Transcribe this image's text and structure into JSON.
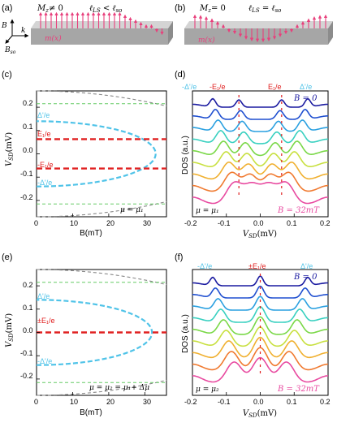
{
  "colors": {
    "pink": "#e8407c",
    "cyan": "#4fc3e8",
    "red": "#e02020",
    "green": "#66cc66",
    "gray": "#888888",
    "dos": [
      "#1a1aa0",
      "#1f4fd0",
      "#2aa0e0",
      "#38d0c0",
      "#7ad848",
      "#c8e040",
      "#f0b030",
      "#f07a30",
      "#e84aa0"
    ]
  },
  "panel_a": {
    "label": "(a)",
    "mz": "M",
    "mz_sub": "z",
    "mz_rel": "≠ 0",
    "l1": "ℓ",
    "l1_sub": "LS",
    "rel": "<",
    "l2": "ℓ",
    "l2_sub": "so",
    "b": "B",
    "k": "k",
    "bso": "B",
    "bso_sub": "so",
    "mx": "m(x)"
  },
  "panel_b": {
    "label": "(b)",
    "mz": "M",
    "mz_sub": "z",
    "mz_rel": "= 0",
    "l1": "ℓ",
    "l1_sub": "LS",
    "rel": "=",
    "l2": "ℓ",
    "l2_sub": "so",
    "mx": "m(x)"
  },
  "panel_c": {
    "label": "(c)",
    "ylabel": "V",
    "ylabel_sub": "SD",
    "ylabel_unit": "(mV)",
    "xlabel": "B(mT)",
    "yticks": [
      "0.2",
      "0.1",
      "0.0",
      "-0.1",
      "-0.2"
    ],
    "xticks": [
      "0",
      "10",
      "20",
      "30"
    ],
    "lbl_delta_top": "Δ'/e",
    "lbl_e1_top": "E₁/e",
    "lbl_e1_bot": "-E₁/e",
    "lbl_delta_bot": "-Δ'/e",
    "mu": "μ = μ₁"
  },
  "panel_d": {
    "label": "(d)",
    "ylabel": "DOS (a.u.)",
    "xlabel": "V",
    "xlabel_sub": "SD",
    "xlabel_unit": "(mV)",
    "xticks": [
      "-0.2",
      "-0.1",
      "0.0",
      "0.1",
      "0.2"
    ],
    "top_labels": [
      "-Δ'/e",
      "-E₁/e",
      "E₁/e",
      "Δ'/e"
    ],
    "b0": "B = 0",
    "b32": "B = 32mT",
    "mu": "μ = μ₁"
  },
  "panel_e": {
    "label": "(e)",
    "ylabel": "V",
    "ylabel_sub": "SD",
    "ylabel_unit": "(mV)",
    "xlabel": "B(mT)",
    "yticks": [
      "0.2",
      "0.1",
      "0.0",
      "-0.1",
      "-0.2"
    ],
    "xticks": [
      "0",
      "10",
      "20",
      "30"
    ],
    "lbl_delta_top": "Δ'/e",
    "lbl_e1": "±E₁/e",
    "lbl_delta_bot": "-Δ'/e",
    "mu": "μ = μ₂ = μ₁+ Δμ"
  },
  "panel_f": {
    "label": "(f)",
    "ylabel": "DOS (a.u.)",
    "xlabel": "V",
    "xlabel_sub": "SD",
    "xlabel_unit": "(mV)",
    "xticks": [
      "-0.2",
      "-0.1",
      "0.0",
      "0.1",
      "0.2"
    ],
    "top_labels": [
      "-Δ'/e",
      "±E₁/e",
      "Δ'/e"
    ],
    "b0": "B = 0",
    "b32": "B = 32mT",
    "mu": "μ = μ₂"
  }
}
